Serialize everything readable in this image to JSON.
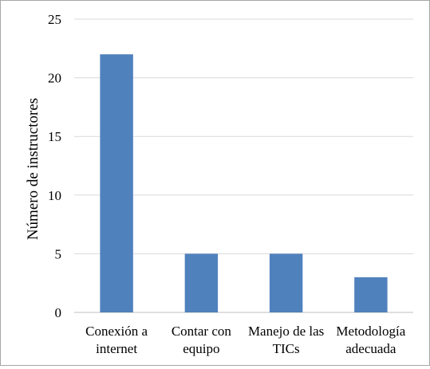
{
  "chart_data": {
    "type": "bar",
    "title": "",
    "xlabel": "",
    "ylabel": "Número de instructores",
    "categories": [
      [
        "Conexión a",
        "internet"
      ],
      [
        "Contar con",
        "equipo"
      ],
      [
        "Manejo de las",
        "TICs"
      ],
      [
        "Metodología",
        "adecuada"
      ]
    ],
    "values": [
      22,
      5,
      5,
      3
    ],
    "ylim": [
      0,
      25
    ],
    "yticks": [
      "0",
      "5",
      "10",
      "15",
      "20",
      "25"
    ],
    "grid": true,
    "legend": "none",
    "colors": {
      "bar": "#4f81bd",
      "grid": "#d9d9d9",
      "axis": "#bfbfbf",
      "border": "#a6a6a6"
    }
  }
}
